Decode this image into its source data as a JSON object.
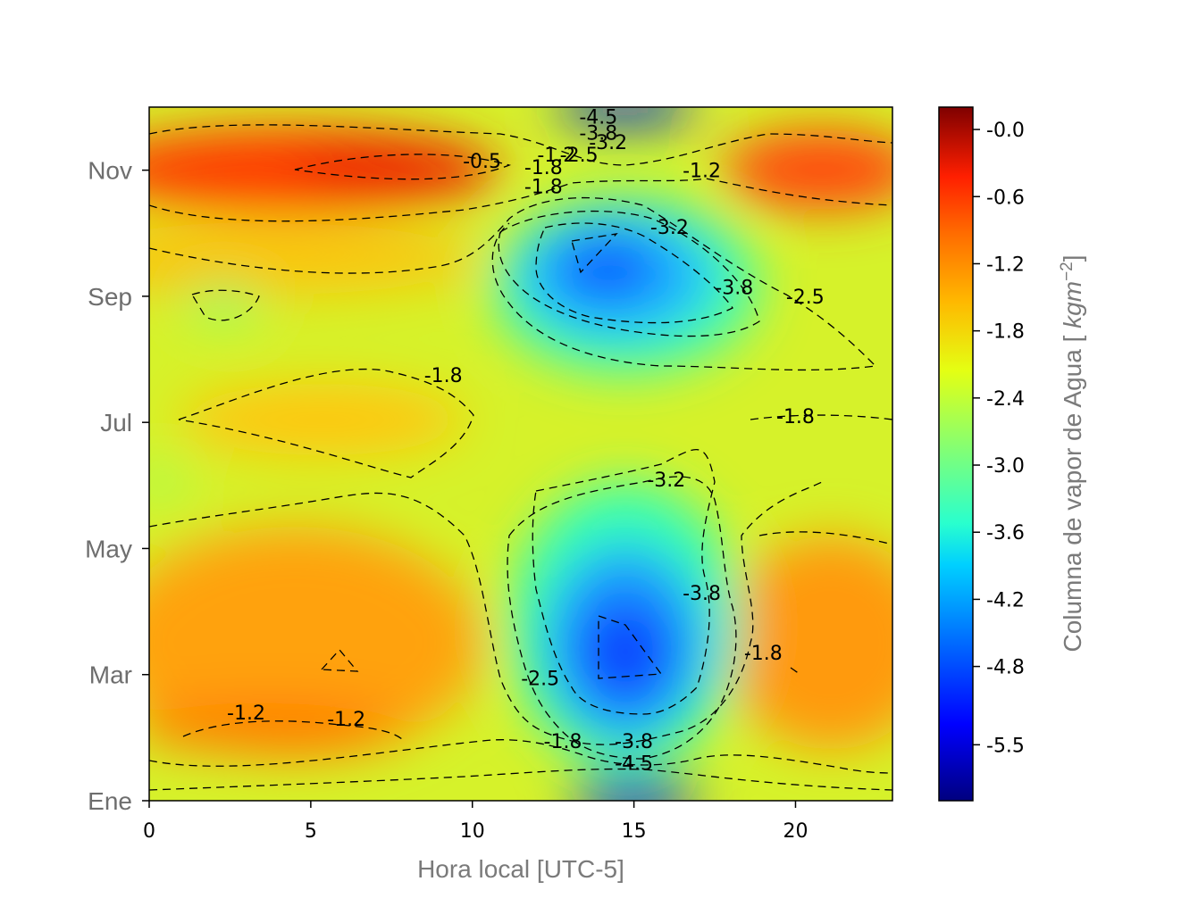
{
  "chart_data": {
    "type": "contour",
    "xlabel": "Hora local [UTC-5]",
    "ylabel_colorbar": "Columna de vapor de Agua [kgm^-2]",
    "x_ticks": [
      0,
      5,
      10,
      15,
      20
    ],
    "xlim": [
      0,
      23
    ],
    "y_ticks": [
      "Ene",
      "Mar",
      "May",
      "Jul",
      "Sep",
      "Nov"
    ],
    "ylim": [
      0,
      11
    ],
    "colormap": "jet",
    "colorbar_range": [
      -6.0,
      0.2
    ],
    "colorbar_ticks": [
      "-0.0",
      "-0.6",
      "-1.2",
      "-1.8",
      "-2.4",
      "-3.0",
      "-3.6",
      "-4.2",
      "-4.8",
      "-5.5"
    ],
    "contour_levels": [
      -4.5,
      -3.8,
      -3.2,
      -2.5,
      -1.8,
      -1.2,
      -0.5
    ],
    "contour_labels": [
      {
        "text": "-4.5",
        "x": 13.9,
        "y": 10.85
      },
      {
        "text": "-3.8",
        "x": 13.9,
        "y": 10.6
      },
      {
        "text": "-3.2",
        "x": 14.2,
        "y": 10.45
      },
      {
        "text": "-2.5",
        "x": 13.3,
        "y": 10.25
      },
      {
        "text": "-1.2",
        "x": 12.6,
        "y": 10.25
      },
      {
        "text": "-0.5",
        "x": 10.3,
        "y": 10.15
      },
      {
        "text": "-1.8",
        "x": 12.2,
        "y": 10.05
      },
      {
        "text": "-1.8",
        "x": 12.2,
        "y": 9.75
      },
      {
        "text": "-1.2",
        "x": 17.1,
        "y": 10.0
      },
      {
        "text": "-3.2",
        "x": 16.1,
        "y": 9.1
      },
      {
        "text": "-3.8",
        "x": 18.1,
        "y": 8.15
      },
      {
        "text": "-2.5",
        "x": 20.3,
        "y": 8.0
      },
      {
        "text": "-1.8",
        "x": 9.1,
        "y": 6.75
      },
      {
        "text": "-1.8",
        "x": 20.0,
        "y": 6.1
      },
      {
        "text": "-3.2",
        "x": 16.0,
        "y": 5.1
      },
      {
        "text": "-3.8",
        "x": 17.1,
        "y": 3.3
      },
      {
        "text": "-1.8",
        "x": 19.0,
        "y": 2.35
      },
      {
        "text": "-2.5",
        "x": 12.1,
        "y": 1.95
      },
      {
        "text": "-1.2",
        "x": 3.0,
        "y": 1.4
      },
      {
        "text": "-1.2",
        "x": 6.1,
        "y": 1.3
      },
      {
        "text": "-1.8",
        "x": 12.8,
        "y": 0.95
      },
      {
        "text": "-3.8",
        "x": 15.0,
        "y": 0.95
      },
      {
        "text": "-4.5",
        "x": 15.0,
        "y": 0.6
      }
    ]
  }
}
